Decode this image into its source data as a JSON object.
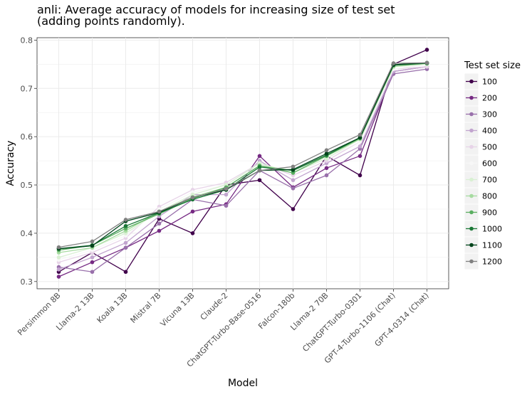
{
  "chart_data": {
    "type": "line",
    "title": "anli: Average accuracy of models for increasing size of test set",
    "subtitle": "(adding points randomly).",
    "xlabel": "Model",
    "ylabel": "Accuracy",
    "ylim": [
      0.285,
      0.805
    ],
    "yticks": [
      0.3,
      0.4,
      0.5,
      0.6,
      0.7,
      0.8
    ],
    "ytick_labels": [
      "0.3",
      "0.4",
      "0.5",
      "0.6",
      "0.7",
      "0.8"
    ],
    "grid": true,
    "legend_title": "Test set size",
    "legend_position": "right",
    "categories": [
      "Persimmon 8B",
      "Llama-2 13B",
      "Koala 13B",
      "Mistral 7B",
      "Vicuna 13B",
      "Claude-2",
      "ChatGPT-Turbo-Base-0516",
      "Falcon-180b",
      "Llama-2 70B",
      "ChatGPT-Turbo-0301",
      "GPT-4-Turbo-1106 (Chat)",
      "GPT-4-0314 (Chat)"
    ],
    "series": [
      {
        "name": "100",
        "color": "#40004b",
        "values": [
          0.32,
          0.36,
          0.32,
          0.43,
          0.4,
          0.5,
          0.51,
          0.45,
          0.56,
          0.52,
          0.75,
          0.78
        ]
      },
      {
        "name": "200",
        "color": "#762a83",
        "values": [
          0.31,
          0.34,
          0.37,
          0.405,
          0.445,
          0.46,
          0.56,
          0.495,
          0.535,
          0.56,
          0.735,
          0.745
        ]
      },
      {
        "name": "300",
        "color": "#9970ab",
        "values": [
          0.33,
          0.32,
          0.37,
          0.42,
          0.47,
          0.457,
          0.53,
          0.493,
          0.52,
          0.575,
          0.73,
          0.74
        ]
      },
      {
        "name": "400",
        "color": "#c2a5cf",
        "values": [
          0.325,
          0.35,
          0.38,
          0.435,
          0.48,
          0.48,
          0.55,
          0.51,
          0.545,
          0.58,
          0.735,
          0.745
        ]
      },
      {
        "name": "500",
        "color": "#e7d4e8",
        "values": [
          0.34,
          0.36,
          0.39,
          0.455,
          0.49,
          0.505,
          0.545,
          0.52,
          0.55,
          0.59,
          0.74,
          0.745
        ]
      },
      {
        "name": "600",
        "color": "#f7f7f7",
        "values": [
          0.345,
          0.365,
          0.395,
          0.45,
          0.485,
          0.5,
          0.54,
          0.525,
          0.555,
          0.59,
          0.74,
          0.75
        ]
      },
      {
        "name": "700",
        "color": "#d9f0d3",
        "values": [
          0.35,
          0.37,
          0.4,
          0.445,
          0.48,
          0.5,
          0.545,
          0.525,
          0.555,
          0.595,
          0.745,
          0.75
        ]
      },
      {
        "name": "800",
        "color": "#a6dba0",
        "values": [
          0.36,
          0.37,
          0.405,
          0.445,
          0.475,
          0.495,
          0.54,
          0.53,
          0.56,
          0.595,
          0.745,
          0.752
        ]
      },
      {
        "name": "900",
        "color": "#5aae61",
        "values": [
          0.365,
          0.375,
          0.41,
          0.44,
          0.472,
          0.495,
          0.54,
          0.525,
          0.56,
          0.597,
          0.748,
          0.752
        ]
      },
      {
        "name": "1000",
        "color": "#1b7837",
        "values": [
          0.368,
          0.375,
          0.415,
          0.442,
          0.47,
          0.49,
          0.537,
          0.53,
          0.562,
          0.598,
          0.748,
          0.752
        ]
      },
      {
        "name": "1100",
        "color": "#00441b",
        "values": [
          0.368,
          0.374,
          0.425,
          0.443,
          0.474,
          0.49,
          0.53,
          0.532,
          0.565,
          0.598,
          0.749,
          0.753
        ]
      },
      {
        "name": "1200",
        "color": "#808080",
        "values": [
          0.371,
          0.383,
          0.428,
          0.445,
          0.474,
          0.492,
          0.53,
          0.538,
          0.572,
          0.604,
          0.752,
          0.753
        ]
      }
    ]
  }
}
